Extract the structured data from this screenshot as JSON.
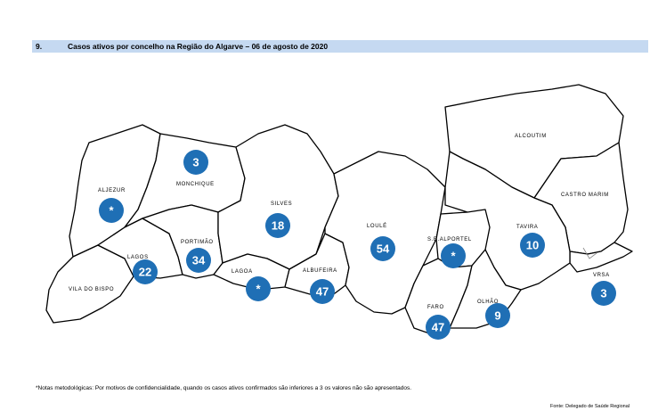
{
  "header": {
    "number": "9.",
    "title": "Casos ativos por concelho na Região do Algarve – 06 de agosto de 2020"
  },
  "municipalities": [
    {
      "id": "aljezur",
      "name": "ALJEZUR",
      "value": "*"
    },
    {
      "id": "monchique",
      "name": "MONCHIQUE",
      "value": "3"
    },
    {
      "id": "silves",
      "name": "SILVES",
      "value": "18"
    },
    {
      "id": "loule",
      "name": "LOULÉ",
      "value": "54"
    },
    {
      "id": "alcoutim",
      "name": "ALCOUTIM",
      "value": ""
    },
    {
      "id": "castro-marim",
      "name": "CASTRO MARIM",
      "value": ""
    },
    {
      "id": "tavira",
      "name": "TAVIRA",
      "value": "10"
    },
    {
      "id": "sbalportel",
      "name": "S.B.ALPORTEL",
      "value": "*"
    },
    {
      "id": "lagos",
      "name": "LAGOS",
      "value": "22"
    },
    {
      "id": "portimao",
      "name": "PORTIMÃO",
      "value": "34"
    },
    {
      "id": "lagoa",
      "name": "LAGOA",
      "value": "*"
    },
    {
      "id": "albufeira",
      "name": "ALBUFEIRA",
      "value": "47"
    },
    {
      "id": "vila-do-bispo",
      "name": "VILA DO BISPO",
      "value": ""
    },
    {
      "id": "faro",
      "name": "FARO",
      "value": "47"
    },
    {
      "id": "olhao",
      "name": "OLHÃO",
      "value": "9"
    },
    {
      "id": "vrsa",
      "name": "VRSA",
      "value": "3"
    }
  ],
  "footnote": "*Notas metodológicas: Por motivos de confidencialidade, quando os casos ativos confirmados são inferiores a 3 os valores não são apresentados.",
  "source": "Fonte: Delegado de Saúde Regional"
}
